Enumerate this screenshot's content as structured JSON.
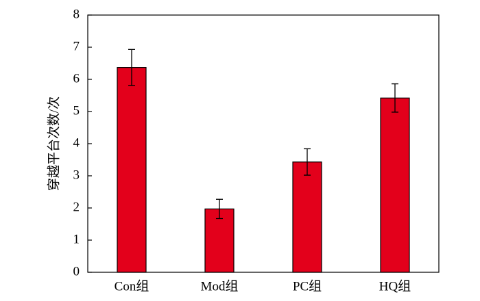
{
  "chart_data": {
    "type": "bar",
    "y_label": "穿越平台次数/次",
    "categories": [
      "Con组",
      "Mod组",
      "PC组",
      "HQ组"
    ],
    "values": [
      6.37,
      1.97,
      3.43,
      5.42
    ],
    "errors": [
      0.56,
      0.3,
      0.41,
      0.44
    ],
    "color": "#e3001b",
    "ylim": [
      0,
      8
    ],
    "yticks": [
      0,
      1,
      2,
      3,
      4,
      5,
      6,
      7,
      8
    ],
    "grid": false
  }
}
